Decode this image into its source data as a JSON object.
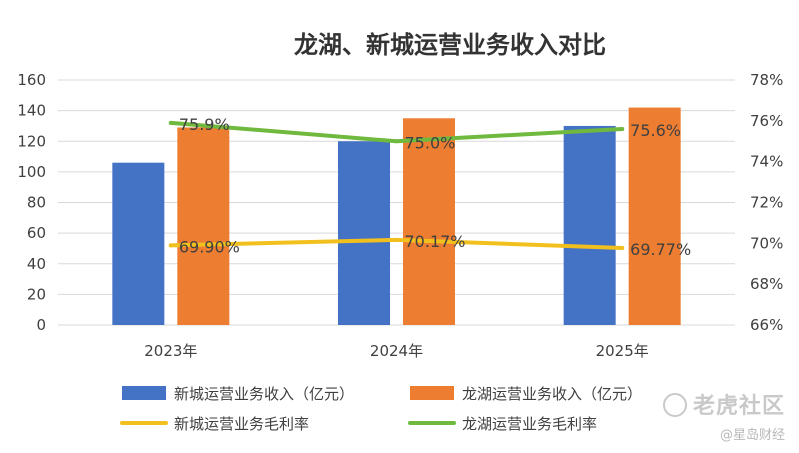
{
  "chart_data": {
    "type": "bar",
    "title": "龙湖、新城运营业务收入对比",
    "categories": [
      "2023年",
      "2024年",
      "2025年"
    ],
    "y_left_ticks": [
      "0",
      "20",
      "40",
      "60",
      "80",
      "100",
      "120",
      "140",
      "160"
    ],
    "y_right_ticks": [
      "66%",
      "68%",
      "70%",
      "72%",
      "74%",
      "76%",
      "78%"
    ],
    "ylim_left": [
      0,
      160
    ],
    "ylim_right": [
      66,
      78
    ],
    "grid": true,
    "legend_position": "bottom",
    "bar_series": [
      {
        "name": "新城运营业务收入（亿元）",
        "color": "#4472C4",
        "values": [
          106,
          120,
          130
        ]
      },
      {
        "name": "龙湖运营业务收入（亿元）",
        "color": "#ED7D31",
        "values": [
          129,
          135,
          142
        ]
      }
    ],
    "line_series": [
      {
        "name": "新城运营业务毛利率",
        "color": "#F2C01E",
        "values": [
          69.9,
          70.17,
          69.77
        ],
        "labels": [
          "69.90%",
          "70.17%",
          "69.77%"
        ]
      },
      {
        "name": "龙湖运营业务毛利率",
        "color": "#70B93F",
        "values": [
          75.9,
          75.0,
          75.6
        ],
        "labels": [
          "75.9%",
          "75.0%",
          "75.6%"
        ]
      }
    ]
  },
  "watermark": {
    "main": "老虎社区",
    "sub": "@星岛财经"
  }
}
